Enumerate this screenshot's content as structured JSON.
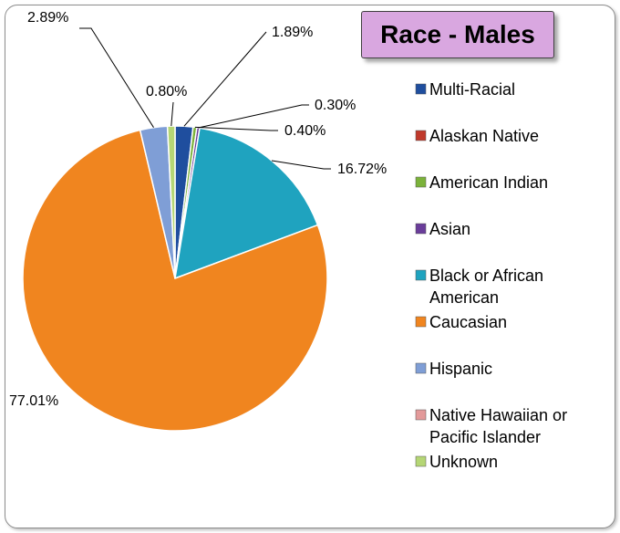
{
  "chart_data": {
    "type": "pie",
    "title": "Race - Males",
    "legend_position": "right",
    "slices": [
      {
        "name": "Multi-Racial",
        "value": 1.89,
        "label": "1.89%",
        "color": "#1f4e9e"
      },
      {
        "name": "Alaskan Native",
        "value": 0.0,
        "label": "",
        "color": "#c0392b"
      },
      {
        "name": "American Indian",
        "value": 0.4,
        "label": "0.40%",
        "color": "#7bb23a"
      },
      {
        "name": "Asian",
        "value": 0.3,
        "label": "0.30%",
        "color": "#6a3d9a"
      },
      {
        "name": "Black or African American",
        "value": 16.72,
        "label": "16.72%",
        "color": "#1fa3bf"
      },
      {
        "name": "Caucasian",
        "value": 77.01,
        "label": "77.01%",
        "color": "#f0851f"
      },
      {
        "name": "Hispanic",
        "value": 2.89,
        "label": "2.89%",
        "color": "#7f9ed6"
      },
      {
        "name": "Native Hawaiian or Pacific Islander",
        "value": 0.0,
        "label": "",
        "color": "#e39a9a"
      },
      {
        "name": "Unknown",
        "value": 0.8,
        "label": "0.80%",
        "color": "#b5d675"
      }
    ],
    "legend": [
      {
        "lines": [
          "Multi-Racial"
        ],
        "color": "#1f4e9e"
      },
      {
        "lines": [
          "Alaskan Native"
        ],
        "color": "#c0392b"
      },
      {
        "lines": [
          "American Indian"
        ],
        "color": "#7bb23a"
      },
      {
        "lines": [
          "Asian"
        ],
        "color": "#6a3d9a"
      },
      {
        "lines": [
          "Black or African",
          "American"
        ],
        "color": "#1fa3bf"
      },
      {
        "lines": [
          "Caucasian"
        ],
        "color": "#f0851f"
      },
      {
        "lines": [
          "Hispanic"
        ],
        "color": "#7f9ed6"
      },
      {
        "lines": [
          "Native Hawaiian or",
          "Pacific Islander"
        ],
        "color": "#e39a9a"
      },
      {
        "lines": [
          "Unknown"
        ],
        "color": "#b5d675"
      }
    ]
  }
}
